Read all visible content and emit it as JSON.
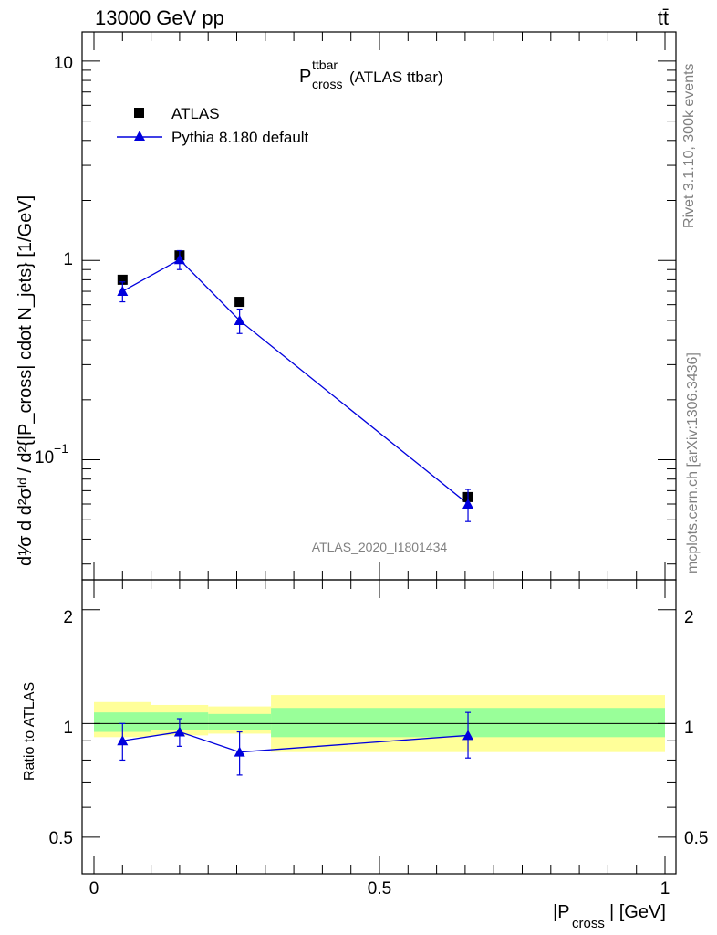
{
  "header": {
    "left": "13000 GeV pp",
    "right": "tt̄"
  },
  "side_text": {
    "rivet": "Rivet 3.1.10,  300k events",
    "mcplots": "mcplots.cern.ch [arXiv:1306.3436]"
  },
  "plot_title": {
    "main": "P",
    "sup": "ttbar",
    "sub": "cross",
    "suffix": " (ATLAS ttbar)"
  },
  "analysis_id": "ATLAS_2020_I1801434",
  "legend": {
    "placement": "top-left",
    "items": [
      {
        "label": "ATLAS",
        "marker": "square",
        "color": "#000000"
      },
      {
        "label": "Pythia 8.180 default",
        "marker": "triangle",
        "color": "#0000dd"
      }
    ]
  },
  "axes": {
    "ylabel_main": "d¹⁄σ d d²σᴵᵈ / d²{|P_cross| cdot N_jets} [1/GeV]",
    "ylabel_ratio": "Ratio to ATLAS",
    "xlabel_main": "|P",
    "xlabel_sub": "cross",
    "xlabel_unit": "| [GeV]",
    "x_ticks": [
      "0",
      "0.5",
      "1"
    ],
    "y_main_ticks": [
      "10",
      "1"
    ],
    "y_main_tick_exp": {
      "base": "10",
      "exp": "−1"
    },
    "y_ratio_ticks": [
      "2",
      "1",
      "0.5"
    ]
  },
  "chart_data": {
    "type": "scatter",
    "xlim": [
      -0.02,
      1.02
    ],
    "ylim_main": [
      0.025,
      14
    ],
    "ylim_main_scale": "log",
    "ylim_ratio": [
      0.4,
      2.4
    ],
    "ylim_ratio_scale": "log",
    "bins": [
      [
        0.0,
        0.1
      ],
      [
        0.1,
        0.2
      ],
      [
        0.2,
        0.31
      ],
      [
        0.31,
        1.0
      ]
    ],
    "x": [
      0.05,
      0.15,
      0.255,
      0.655
    ],
    "series": [
      {
        "name": "ATLAS",
        "values": [
          0.8,
          1.06,
          0.62,
          0.065
        ],
        "yerr": [
          0.03,
          0.03,
          0.02,
          0.004
        ]
      },
      {
        "name": "Pythia 8.180 default",
        "values": [
          0.7,
          1.01,
          0.5,
          0.06
        ],
        "yerr_lo": [
          0.08,
          0.11,
          0.07,
          0.011
        ],
        "yerr_hi": [
          0.08,
          0.11,
          0.07,
          0.011
        ]
      }
    ],
    "ratio": {
      "values": [
        0.9,
        0.95,
        0.84,
        0.93
      ],
      "err_lo": [
        0.1,
        0.08,
        0.11,
        0.12
      ],
      "err_hi": [
        0.1,
        0.08,
        0.11,
        0.14
      ]
    },
    "bands": {
      "green": {
        "lo": [
          0.95,
          0.96,
          0.96,
          0.92
        ],
        "hi": [
          1.07,
          1.07,
          1.06,
          1.1
        ],
        "color": "#99ff99"
      },
      "yellow": {
        "lo": [
          0.92,
          0.93,
          0.94,
          0.84
        ],
        "hi": [
          1.14,
          1.12,
          1.11,
          1.19
        ],
        "color": "#ffff99"
      }
    }
  }
}
